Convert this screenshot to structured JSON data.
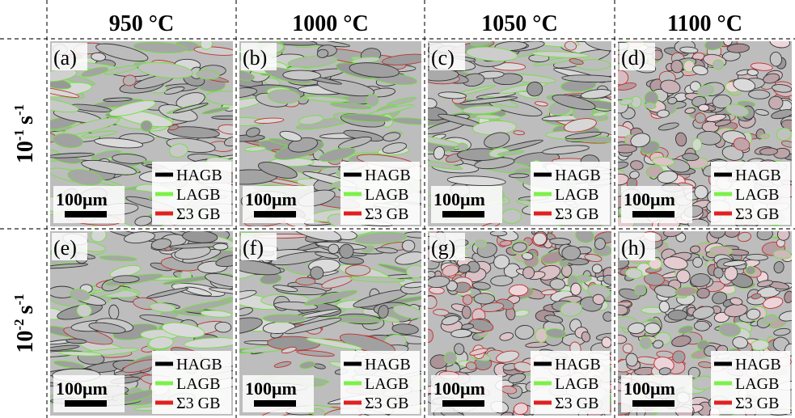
{
  "columns": [
    "950 °C",
    "1000 °C",
    "1050 °C",
    "1100 °C"
  ],
  "rows": [
    {
      "base": "10",
      "exp": "-1",
      "unit": "s",
      "unit_exp": "-1"
    },
    {
      "base": "10",
      "exp": "-2",
      "unit": "s",
      "unit_exp": "-1"
    }
  ],
  "panels": [
    {
      "label": "(a)"
    },
    {
      "label": "(b)"
    },
    {
      "label": "(c)"
    },
    {
      "label": "(d)"
    },
    {
      "label": "(e)"
    },
    {
      "label": "(f)"
    },
    {
      "label": "(g)"
    },
    {
      "label": "(h)"
    }
  ],
  "legend": [
    {
      "name": "HAGB",
      "color": "#000000"
    },
    {
      "name": "LAGB",
      "color": "#7df04a"
    },
    {
      "name": "Σ3 GB",
      "color": "#e02020"
    }
  ],
  "scale_bar": "100μm"
}
